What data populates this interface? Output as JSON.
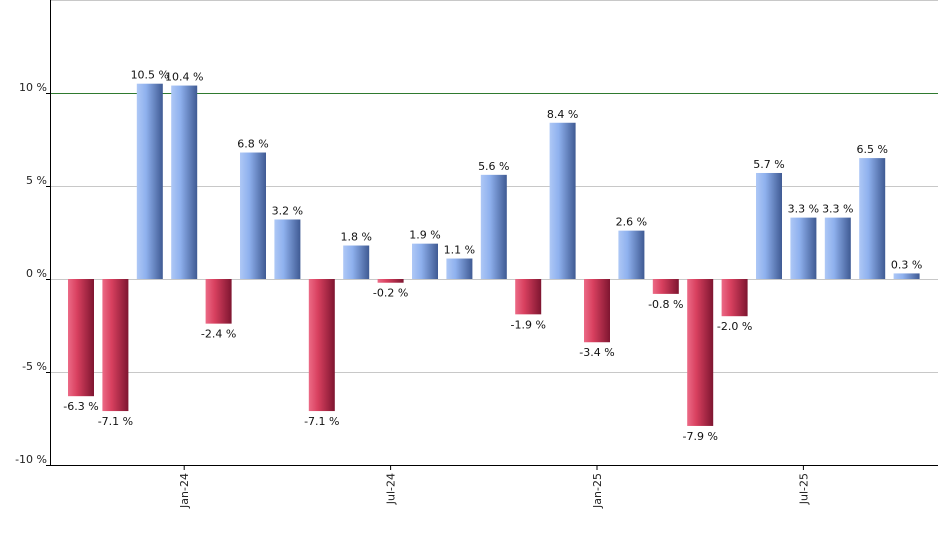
{
  "chart_data": {
    "type": "bar",
    "months": [
      "2023-10",
      "2023-11",
      "2023-12",
      "2024-01",
      "2024-02",
      "2024-03",
      "2024-04",
      "2024-05",
      "2024-06",
      "2024-07",
      "2024-08",
      "2024-09",
      "2024-10",
      "2024-11",
      "2024-12",
      "2025-01",
      "2025-02",
      "2025-03",
      "2025-04",
      "2025-05",
      "2025-06",
      "2025-07",
      "2025-08",
      "2025-09",
      "2025-10"
    ],
    "values": [
      -6.3,
      -7.1,
      10.5,
      10.4,
      -2.4,
      6.8,
      3.2,
      -7.1,
      1.8,
      -0.2,
      1.9,
      1.1,
      5.6,
      -1.9,
      8.4,
      -3.4,
      2.6,
      -0.8,
      -7.9,
      -2.0,
      5.7,
      3.3,
      3.3,
      6.5,
      0.3
    ],
    "value_labels": [
      "-6.3 %",
      "-7.1 %",
      "10.5 %",
      "10.4 %",
      "-2.4 %",
      "6.8 %",
      "3.2 %",
      "-7.1 %",
      "1.8 %",
      "-0.2 %",
      "1.9 %",
      "1.1 %",
      "5.6 %",
      "-1.9 %",
      "8.4 %",
      "-3.4 %",
      "2.6 %",
      "-0.8 %",
      "-7.9 %",
      "-2.0 %",
      "5.7 %",
      "3.3 %",
      "3.3 %",
      "6.5 %",
      "0.3 %"
    ],
    "x_ticks": [
      {
        "label": "Jan-24",
        "month": "2024-01"
      },
      {
        "label": "Jul-24",
        "month": "2024-07"
      },
      {
        "label": "Jan-25",
        "month": "2025-01"
      },
      {
        "label": "Jul-25",
        "month": "2025-07"
      }
    ],
    "y_ticks": [
      {
        "value": -10,
        "label": "-10 %"
      },
      {
        "value": -5,
        "label": "-5 %"
      },
      {
        "value": 0,
        "label": "0 %"
      },
      {
        "value": 5,
        "label": "5 %"
      },
      {
        "value": 10,
        "label": "10 %"
      }
    ],
    "ylim": [
      -10,
      15
    ],
    "reference_line": 10,
    "grid": true,
    "colors": {
      "positive_light": "#aec8f6",
      "positive_dark": "#3f5a93",
      "negative_light": "#ec6a86",
      "negative_dark": "#7e1530",
      "reference": "#2f7a2f",
      "grid": "#c8c8c8",
      "axis": "#000000"
    }
  }
}
